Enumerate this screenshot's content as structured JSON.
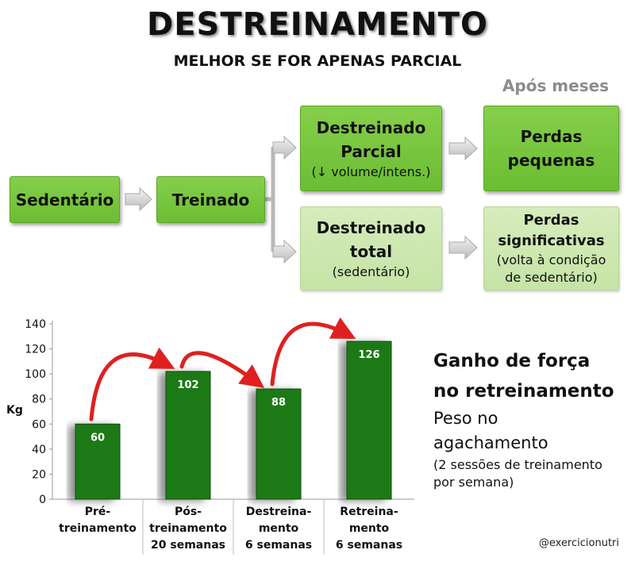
{
  "header": {
    "title": "DESTREINAMENTO",
    "subtitle": "MELHOR SE FOR APENAS PARCIAL",
    "after_label": "Após meses"
  },
  "flow": {
    "sedentario": "Sedentário",
    "treinado": "Treinado",
    "parcial": {
      "line1": "Destreinado",
      "line2": "Parcial",
      "note": "(↓ volume/intens.)"
    },
    "total": {
      "line1": "Destreinado",
      "line2": "total",
      "note": "(sedentário)"
    },
    "perdas_pequenas": {
      "line1": "Perdas",
      "line2": "pequenas"
    },
    "perdas_significativas": {
      "line1": "Perdas",
      "line2": "significativas",
      "note1": "(volta à condição",
      "note2": "de sedentário)"
    }
  },
  "chart_data": {
    "type": "bar",
    "ylabel": "Kg",
    "ylim": [
      0,
      140
    ],
    "yticks": [
      "0",
      "20",
      "40",
      "60",
      "80",
      "100",
      "120",
      "140"
    ],
    "categories": [
      [
        "Pré-",
        "treinamento"
      ],
      [
        "Pós-",
        "treinamento",
        "20 semanas"
      ],
      [
        "Destreina-",
        "mento",
        "6 semanas"
      ],
      [
        "Retreina-",
        "mento",
        "6 semanas"
      ]
    ],
    "values": [
      60,
      102,
      88,
      126
    ],
    "value_labels": [
      "60",
      "102",
      "88",
      "126"
    ],
    "bar_color": "#1a7a12",
    "arrow_color": "#e02020"
  },
  "side": {
    "title1": "Ganho de força",
    "title2": "no retreinamento",
    "sub1": "Peso no",
    "sub2": "agachamento",
    "note1": "(2 sessões de treinamento",
    "note2": "por semana)"
  },
  "credit": "@exercicionutri"
}
